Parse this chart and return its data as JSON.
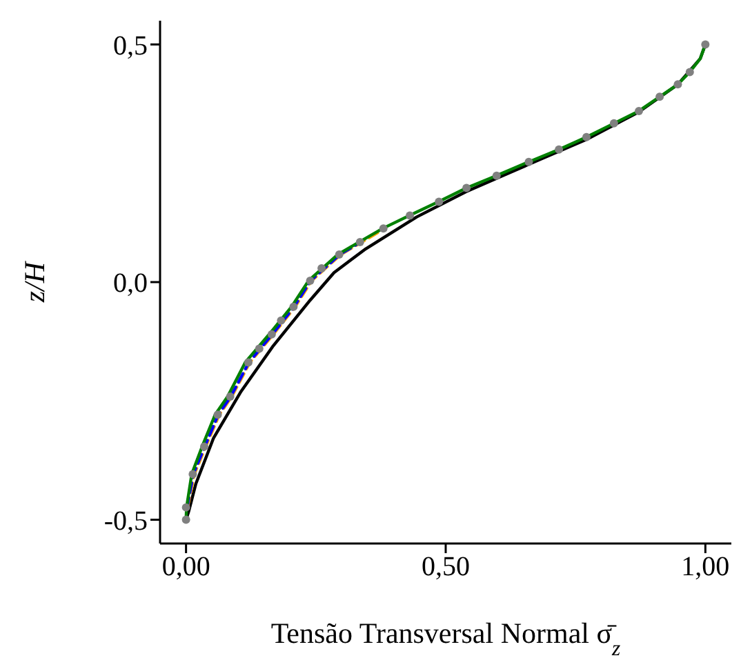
{
  "chart_data": {
    "type": "line",
    "xlabel": "Tensão Transversal Normal σ̄$_{z}$",
    "ylabel": "z/H",
    "xlim": [
      -0.05,
      1.05
    ],
    "xticks": [
      {
        "value": 0,
        "label": "0,00"
      },
      {
        "value": 0.5,
        "label": "0,50"
      },
      {
        "value": 1,
        "label": "1,00"
      }
    ],
    "ylim": [
      -0.55,
      0.55
    ],
    "yticks": [
      {
        "value": -0.5,
        "label": "-0,5"
      },
      {
        "value": 0,
        "label": "0,0"
      },
      {
        "value": 0.5,
        "label": "0,5"
      }
    ],
    "grid": false,
    "legend": false,
    "series": [
      {
        "color": "#000000",
        "line_style": "solid",
        "x": [
          0,
          0.005,
          0.019,
          0.053,
          0.106,
          0.168,
          0.239,
          0.285,
          0.346,
          0.444,
          0.539,
          0.652,
          0.771,
          0.872,
          0.947,
          0.99,
          1.0
        ],
        "values": [
          -0.5,
          -0.483,
          -0.424,
          -0.328,
          -0.23,
          -0.134,
          -0.038,
          0.02,
          0.07,
          0.137,
          0.19,
          0.244,
          0.3,
          0.358,
          0.416,
          0.47,
          0.5
        ]
      },
      {
        "type": "scatter",
        "color": "#808080",
        "marker": "circle",
        "x": [
          0,
          0,
          0.013,
          0.035,
          0.061,
          0.085,
          0.12,
          0.141,
          0.165,
          0.183,
          0.207,
          0.239,
          0.261,
          0.295,
          0.335,
          0.38,
          0.431,
          0.487,
          0.54,
          0.598,
          0.66,
          0.718,
          0.771,
          0.824,
          0.872,
          0.912,
          0.947,
          0.97,
          1.0
        ],
        "values": [
          -0.5,
          -0.474,
          -0.404,
          -0.346,
          -0.279,
          -0.241,
          -0.169,
          -0.14,
          -0.11,
          -0.081,
          -0.052,
          0.003,
          0.029,
          0.058,
          0.084,
          0.113,
          0.14,
          0.169,
          0.198,
          0.224,
          0.253,
          0.279,
          0.305,
          0.334,
          0.36,
          0.39,
          0.416,
          0.442,
          0.5
        ]
      },
      {
        "color": "#ffa500",
        "line_style": "dashed",
        "x": [
          0.003,
          0.016,
          0.038,
          0.064,
          0.088,
          0.123,
          0.168,
          0.21,
          0.242,
          0.298,
          0.338,
          0.383
        ],
        "values": [
          -0.474,
          -0.404,
          -0.346,
          -0.279,
          -0.241,
          -0.169,
          -0.11,
          -0.052,
          0.003,
          0.058,
          0.084,
          0.113
        ]
      },
      {
        "color": "#0000ff",
        "line_style": "dashed",
        "x": [
          0.002,
          0.014,
          0.036,
          0.062,
          0.086,
          0.121,
          0.166,
          0.208,
          0.24,
          0.296,
          0.336
        ],
        "values": [
          -0.474,
          -0.404,
          -0.346,
          -0.279,
          -0.241,
          -0.169,
          -0.11,
          -0.052,
          0.003,
          0.058,
          0.084
        ]
      },
      {
        "color": "#008000",
        "line_style": "solid",
        "x": [
          0,
          0.001,
          0.011,
          0.031,
          0.056,
          0.08,
          0.114,
          0.16,
          0.203,
          0.236,
          0.292,
          0.333,
          0.379,
          0.43,
          0.486,
          0.54,
          0.598,
          0.66,
          0.718,
          0.771,
          0.824,
          0.872,
          0.912,
          0.947,
          0.97,
          0.99,
          1.0
        ],
        "values": [
          -0.5,
          -0.474,
          -0.404,
          -0.346,
          -0.279,
          -0.241,
          -0.169,
          -0.11,
          -0.052,
          0.003,
          0.058,
          0.084,
          0.113,
          0.14,
          0.169,
          0.198,
          0.224,
          0.253,
          0.279,
          0.305,
          0.334,
          0.36,
          0.39,
          0.416,
          0.442,
          0.47,
          0.5
        ]
      }
    ]
  }
}
